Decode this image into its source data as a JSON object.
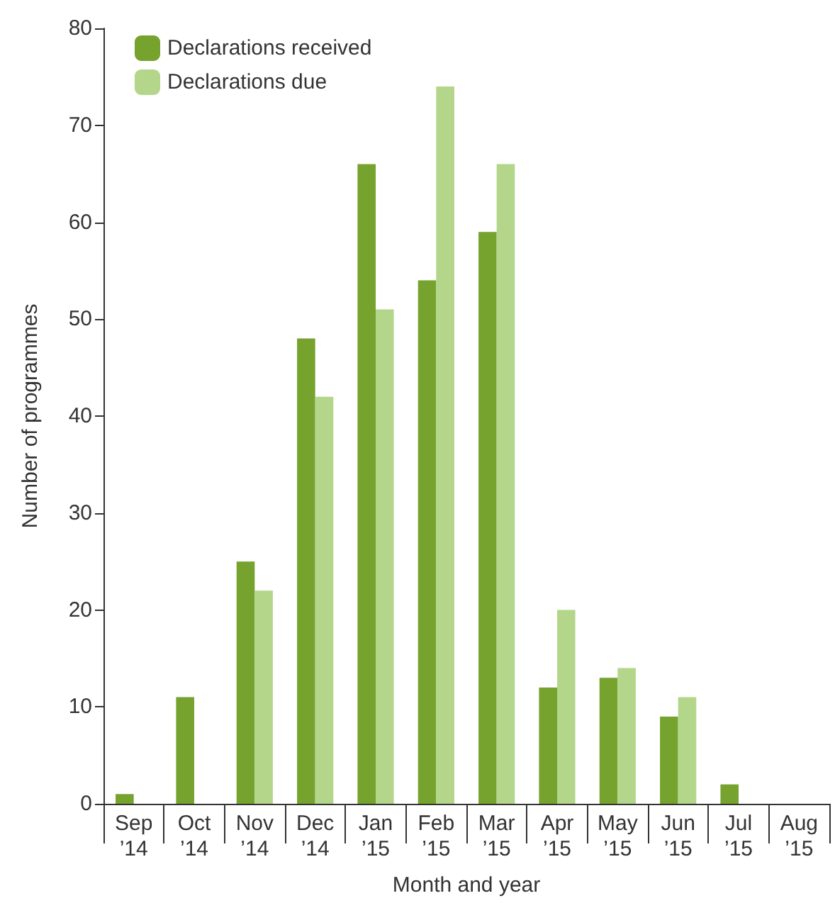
{
  "chart_data": {
    "type": "bar",
    "xlabel": "Month and year",
    "ylabel": "Number of programmes",
    "categories": [
      "Sep\n’14",
      "Oct\n’14",
      "Nov\n’14",
      "Dec\n’14",
      "Jan\n’15",
      "Feb\n’15",
      "Mar\n’15",
      "Apr\n’15",
      "May\n’15",
      "Jun\n’15",
      "Jul\n’15",
      "Aug\n’15"
    ],
    "series": [
      {
        "name": "Declarations received",
        "color": "#76a22e",
        "values": [
          1,
          11,
          25,
          48,
          66,
          54,
          59,
          12,
          13,
          9,
          2,
          0
        ]
      },
      {
        "name": "Declarations due",
        "color": "#b3d68a",
        "values": [
          0,
          0,
          22,
          42,
          51,
          74,
          66,
          20,
          14,
          11,
          0,
          0
        ]
      }
    ],
    "ylim": [
      0,
      80
    ],
    "yticks": [
      0,
      10,
      20,
      30,
      40,
      50,
      60,
      70,
      80
    ],
    "grid": false,
    "legend": "top left"
  }
}
